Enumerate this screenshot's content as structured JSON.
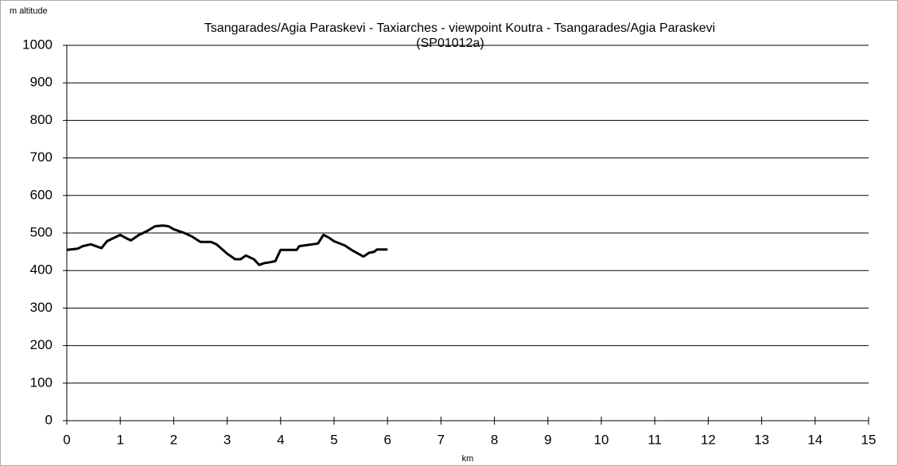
{
  "chart_data": {
    "type": "line",
    "title": "Tsangarades/Agia Paraskevi - Taxiarches - viewpoint Koutra - Tsangarades/Agia Paraskevi",
    "subtitle": "(SP01012a)",
    "y_label": "m altitude",
    "x_label": "km",
    "color": "#000000",
    "x": [
      0,
      0.2,
      0.3,
      0.45,
      0.6,
      0.65,
      0.75,
      0.85,
      1.0,
      1.1,
      1.2,
      1.35,
      1.5,
      1.65,
      1.8,
      1.9,
      2.0,
      2.2,
      2.35,
      2.5,
      2.7,
      2.8,
      3.0,
      3.15,
      3.25,
      3.35,
      3.5,
      3.6,
      3.7,
      3.8,
      3.9,
      4.0,
      4.3,
      4.35,
      4.6,
      4.7,
      4.8,
      4.9,
      5.0,
      5.2,
      5.35,
      5.55,
      5.65,
      5.75,
      5.8,
      6.0
    ],
    "values": [
      455,
      458,
      465,
      470,
      462,
      460,
      478,
      485,
      495,
      487,
      480,
      495,
      505,
      518,
      520,
      518,
      510,
      500,
      490,
      476,
      476,
      470,
      445,
      430,
      430,
      440,
      430,
      415,
      420,
      422,
      425,
      455,
      455,
      465,
      470,
      472,
      495,
      488,
      478,
      467,
      453,
      437,
      447,
      450,
      456,
      456
    ],
    "xlim": [
      0,
      15
    ],
    "xticks": [
      0,
      1,
      2,
      3,
      4,
      5,
      6,
      7,
      8,
      9,
      10,
      11,
      12,
      13,
      14,
      15
    ],
    "ylim": [
      0,
      1000
    ],
    "yticks": [
      0,
      100,
      200,
      300,
      400,
      500,
      600,
      700,
      800,
      900,
      1000
    ],
    "grid": true
  }
}
